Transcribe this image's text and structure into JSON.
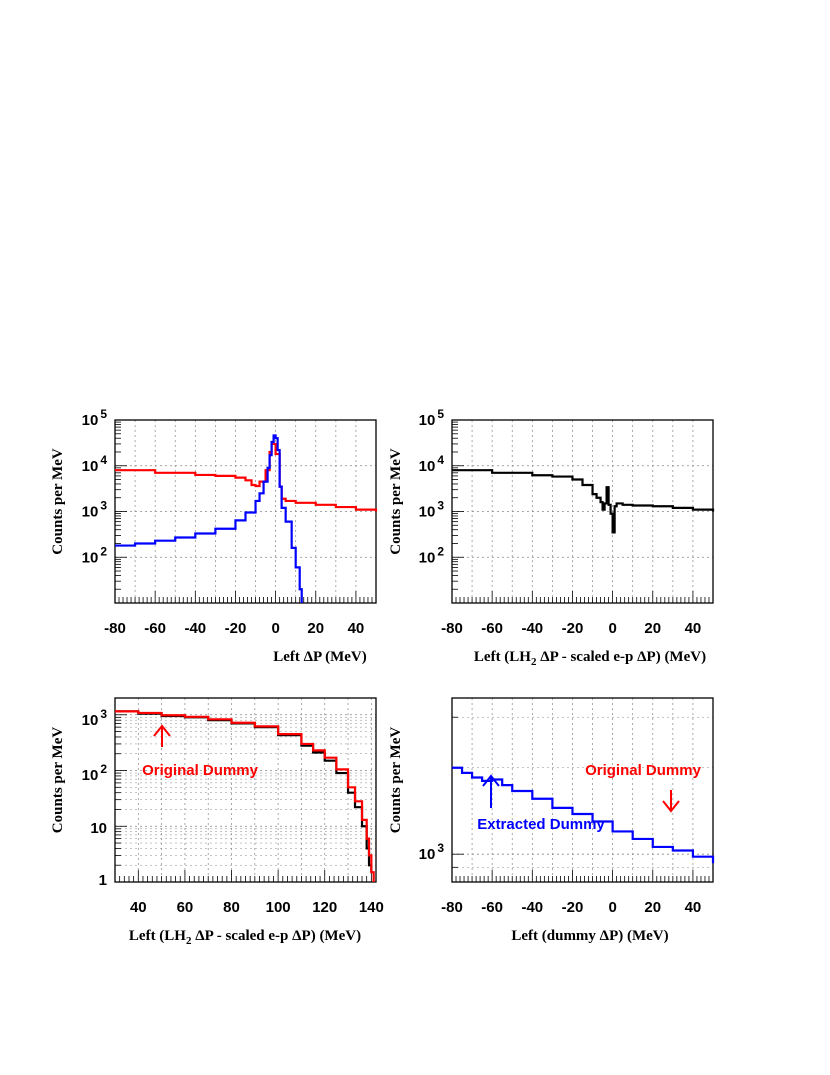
{
  "chart_data": [
    {
      "type": "line",
      "xlabel": "Left ΔP (MeV)",
      "ylabel": "Counts per MeV",
      "xlim": [
        -80,
        50
      ],
      "ylim": [
        10,
        100000
      ],
      "log_y": true,
      "grid": true,
      "xticks": [
        "-80",
        "-60",
        "-40",
        "-20",
        "0",
        "20",
        "40"
      ],
      "yticks": [
        {
          "base": "10",
          "exp": "2"
        },
        {
          "base": "10",
          "exp": "3"
        },
        {
          "base": "10",
          "exp": "4"
        },
        {
          "base": "10",
          "exp": "5"
        }
      ],
      "series": [
        {
          "color": "#ff0000",
          "x": [
            -80,
            -60,
            -40,
            -30,
            -20,
            -15,
            -12,
            -10,
            -8,
            -5,
            -3,
            -2,
            0,
            2,
            3,
            5,
            10,
            20,
            30,
            40,
            50
          ],
          "y": [
            8000,
            7000,
            6300,
            6000,
            5500,
            4800,
            3800,
            3600,
            4500,
            8000,
            20000,
            30000,
            18000,
            3500,
            1900,
            1700,
            1550,
            1400,
            1250,
            1100,
            1000
          ]
        },
        {
          "color": "#0000ff",
          "x": [
            -80,
            -70,
            -60,
            -50,
            -40,
            -30,
            -20,
            -15,
            -10,
            -8,
            -6,
            -4,
            -3,
            -2,
            -1,
            0,
            1,
            2,
            3,
            5,
            8,
            10,
            12,
            13
          ],
          "y": [
            180,
            200,
            230,
            270,
            330,
            420,
            640,
            950,
            1700,
            2500,
            4500,
            9000,
            17000,
            33000,
            46000,
            40000,
            22000,
            3500,
            1200,
            600,
            160,
            60,
            20,
            10
          ]
        }
      ]
    },
    {
      "type": "line",
      "xlabel_parts": [
        "Left (LH",
        "2",
        " ΔP - scaled e-p ΔP) (MeV)"
      ],
      "ylabel": "Counts per MeV",
      "xlim": [
        -80,
        50
      ],
      "ylim": [
        10,
        100000
      ],
      "log_y": true,
      "grid": true,
      "xticks": [
        "-80",
        "-60",
        "-40",
        "-20",
        "0",
        "20",
        "40"
      ],
      "yticks": [
        {
          "base": "10",
          "exp": "2"
        },
        {
          "base": "10",
          "exp": "3"
        },
        {
          "base": "10",
          "exp": "4"
        },
        {
          "base": "10",
          "exp": "5"
        }
      ],
      "series": [
        {
          "color": "#000000",
          "x": [
            -80,
            -60,
            -40,
            -30,
            -20,
            -15,
            -10,
            -8,
            -6,
            -5,
            -4,
            -3,
            -2,
            -1,
            0,
            1,
            2,
            5,
            10,
            20,
            30,
            40,
            50
          ],
          "y": [
            8000,
            7000,
            6200,
            5800,
            5000,
            3800,
            2400,
            2000,
            1600,
            1100,
            1500,
            3400,
            1400,
            900,
            350,
            1300,
            1500,
            1400,
            1350,
            1300,
            1200,
            1100,
            1000
          ]
        }
      ]
    },
    {
      "type": "line",
      "xlabel_parts": [
        "Left (LH",
        "2",
        " ΔP - scaled e-p ΔP) (MeV)"
      ],
      "ylabel": "Counts per MeV",
      "xlim": [
        30,
        142
      ],
      "ylim": [
        1,
        2000
      ],
      "log_y": true,
      "grid": true,
      "xticks": [
        "40",
        "60",
        "80",
        "100",
        "120",
        "140"
      ],
      "yticks": [
        {
          "base": "1",
          "exp": ""
        },
        {
          "base": "10",
          "exp": ""
        },
        {
          "base": "10",
          "exp": "2"
        },
        {
          "base": "10",
          "exp": "3"
        }
      ],
      "annotations": [
        {
          "text": "Original Dummy",
          "color": "#ff0000"
        }
      ],
      "series": [
        {
          "color": "#000000",
          "x": [
            30,
            40,
            50,
            60,
            70,
            80,
            90,
            100,
            110,
            115,
            120,
            125,
            130,
            133,
            136,
            138,
            139,
            140
          ],
          "y": [
            1150,
            1050,
            950,
            900,
            800,
            700,
            600,
            430,
            280,
            210,
            150,
            90,
            40,
            22,
            10,
            4,
            2,
            1.5
          ]
        },
        {
          "color": "#ff0000",
          "x": [
            30,
            40,
            50,
            60,
            70,
            80,
            90,
            100,
            110,
            115,
            120,
            125,
            130,
            133,
            136,
            138,
            139,
            140,
            141
          ],
          "y": [
            1150,
            1080,
            980,
            920,
            830,
            720,
            620,
            450,
            300,
            230,
            170,
            105,
            50,
            28,
            13,
            6,
            3,
            1.5,
            1
          ]
        }
      ]
    },
    {
      "type": "line",
      "xlabel": "Left (dummy ΔP) (MeV)",
      "ylabel": "Counts per MeV",
      "xlim": [
        -80,
        50
      ],
      "ylim": [
        800,
        3500
      ],
      "log_y": true,
      "grid": true,
      "xticks": [
        "-80",
        "-60",
        "-40",
        "-20",
        "0",
        "20",
        "40"
      ],
      "yticks": [
        {
          "base": "10",
          "exp": "3",
          "value": 1000
        }
      ],
      "annotations": [
        {
          "text": "Original Dummy",
          "color": "#ff0000"
        },
        {
          "text": "Extracted Dummy",
          "color": "#0000ff"
        }
      ],
      "series": [
        {
          "color": "#0000ff",
          "x": [
            -80,
            -75,
            -70,
            -65,
            -60,
            -55,
            -50,
            -40,
            -30,
            -20,
            -10,
            0,
            10,
            20,
            30,
            40,
            50
          ],
          "y": [
            2000,
            1920,
            1850,
            1800,
            1820,
            1740,
            1660,
            1560,
            1450,
            1380,
            1300,
            1200,
            1130,
            1060,
            1030,
            980,
            930
          ]
        }
      ]
    }
  ]
}
